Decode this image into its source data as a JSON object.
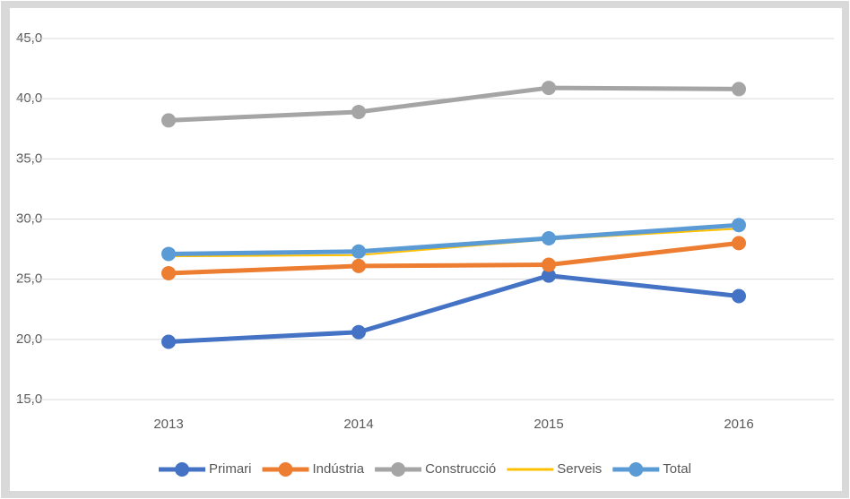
{
  "chart_data": {
    "type": "line",
    "categories": [
      "2013",
      "2014",
      "2015",
      "2016"
    ],
    "series": [
      {
        "name": "Primari",
        "color": "#4472c4",
        "marker": true,
        "values": [
          19.8,
          20.6,
          25.3,
          23.6
        ]
      },
      {
        "name": "Indústria",
        "color": "#ed7d31",
        "marker": true,
        "values": [
          25.5,
          26.1,
          26.2,
          28.0
        ]
      },
      {
        "name": "Construcció",
        "color": "#a5a5a5",
        "marker": true,
        "values": [
          38.2,
          38.9,
          40.9,
          40.8
        ]
      },
      {
        "name": "Serveis",
        "color": "#ffc000",
        "marker": false,
        "values": [
          26.9,
          27.0,
          28.3,
          29.2
        ]
      },
      {
        "name": "Total",
        "color": "#5b9bd5",
        "marker": true,
        "values": [
          27.1,
          27.3,
          28.4,
          29.5
        ]
      }
    ],
    "ylim": [
      15,
      45
    ],
    "yticks": [
      {
        "value": 15,
        "label": "15,0"
      },
      {
        "value": 20,
        "label": "20,0"
      },
      {
        "value": 25,
        "label": "25,0"
      },
      {
        "value": 30,
        "label": "30,0"
      },
      {
        "value": 35,
        "label": "35,0"
      },
      {
        "value": 40,
        "label": "40,0"
      },
      {
        "value": 45,
        "label": "45,0"
      }
    ],
    "grid": true,
    "legend": "bottom"
  }
}
